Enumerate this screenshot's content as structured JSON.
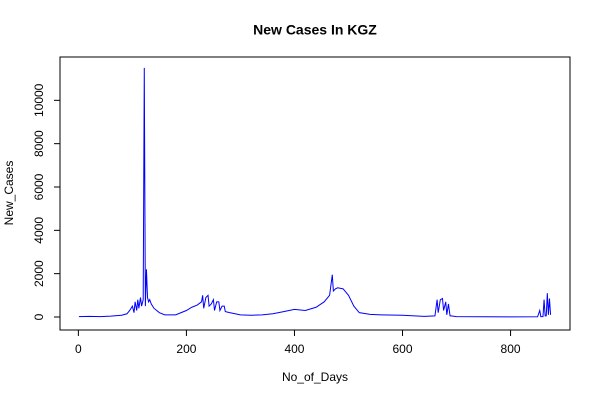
{
  "chart_data": {
    "type": "line",
    "title": "New Cases In KGZ",
    "x_label": "No_of_Days",
    "y_label": "New_Cases",
    "color": "#0000ff",
    "x": [
      1,
      20,
      40,
      60,
      80,
      90,
      95,
      100,
      103,
      105,
      108,
      110,
      112,
      115,
      117,
      120,
      122,
      124,
      126,
      128,
      130,
      132,
      135,
      140,
      150,
      160,
      180,
      200,
      210,
      220,
      228,
      230,
      232,
      236,
      240,
      242,
      246,
      250,
      252,
      256,
      260,
      262,
      266,
      270,
      272,
      280,
      300,
      320,
      340,
      360,
      380,
      400,
      420,
      440,
      455,
      465,
      470,
      472,
      476,
      480,
      490,
      500,
      510,
      520,
      540,
      560,
      600,
      640,
      660,
      664,
      666,
      670,
      674,
      676,
      680,
      682,
      685,
      688,
      690,
      700,
      750,
      800,
      850,
      854,
      856,
      860,
      862,
      864,
      866,
      868,
      870,
      872,
      874
    ],
    "values": [
      20,
      30,
      20,
      40,
      80,
      150,
      300,
      500,
      200,
      700,
      300,
      800,
      400,
      900,
      500,
      800,
      11500,
      500,
      2200,
      900,
      700,
      800,
      600,
      400,
      200,
      100,
      100,
      300,
      450,
      550,
      700,
      1000,
      400,
      900,
      1000,
      500,
      600,
      800,
      300,
      700,
      700,
      300,
      500,
      500,
      250,
      200,
      100,
      80,
      100,
      150,
      250,
      350,
      300,
      450,
      700,
      1000,
      1950,
      1200,
      1300,
      1350,
      1300,
      1000,
      500,
      200,
      120,
      100,
      80,
      30,
      50,
      800,
      200,
      800,
      850,
      300,
      700,
      100,
      600,
      50,
      50,
      20,
      10,
      5,
      10,
      300,
      20,
      20,
      800,
      50,
      50,
      1100,
      100,
      850,
      100
    ],
    "xlim": [
      -34,
      910
    ],
    "ylim": [
      -600,
      12000
    ],
    "xticks": [
      0,
      200,
      400,
      600,
      800
    ],
    "yticks": [
      0,
      2000,
      4000,
      6000,
      8000,
      10000
    ]
  }
}
